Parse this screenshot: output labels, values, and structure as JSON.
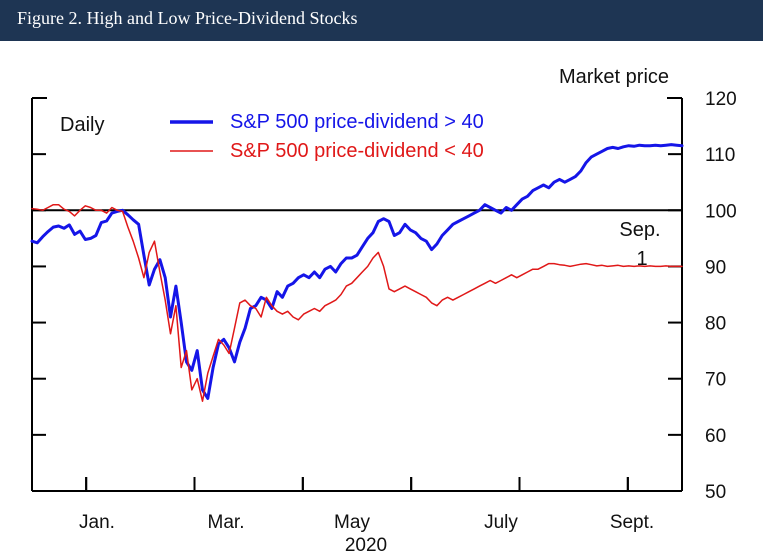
{
  "header": {
    "title": "Figure 2. High and Low Price-Dividend Stocks"
  },
  "chart_data": {
    "type": "line",
    "frequency_label": "Daily",
    "ylabel": "Market price",
    "xlabel": "2020",
    "ylim": [
      50,
      120
    ],
    "yticks": [
      50,
      60,
      70,
      80,
      90,
      100,
      110,
      120
    ],
    "x_tick_labels": [
      "Jan.",
      "Mar.",
      "May",
      "July",
      "Sept."
    ],
    "reference_line": 100,
    "annotation": {
      "line1": "Sep.",
      "line2": "1"
    },
    "grid": false,
    "legend_position": "top-left",
    "colors": {
      "high": "#1515e8",
      "low": "#e01818",
      "axis": "#000000",
      "header": "#1e3553"
    },
    "series": [
      {
        "name": "S&P 500 price-dividend > 40",
        "key": "high",
        "x": [
          0,
          2,
          4,
          6,
          8,
          10,
          12,
          14,
          16,
          18,
          20,
          22,
          24,
          26,
          28,
          30,
          32,
          34,
          36,
          38,
          40,
          42,
          44,
          46,
          48,
          50,
          52,
          54,
          56,
          58,
          60,
          62,
          64,
          66,
          68,
          70,
          72,
          74,
          76,
          78,
          80,
          82,
          84,
          86,
          88,
          90,
          92,
          94,
          96,
          98,
          100,
          102,
          104,
          106,
          108,
          110,
          112,
          114,
          116,
          118,
          120,
          122,
          124,
          126,
          128,
          130,
          132,
          134,
          136,
          138,
          140,
          142,
          144,
          146,
          148,
          150,
          152,
          154,
          156,
          158,
          160,
          162,
          164,
          166,
          168,
          170,
          172,
          174,
          176,
          178,
          180,
          182,
          184,
          186,
          188,
          190,
          192,
          194,
          196,
          198,
          200,
          202,
          204,
          206,
          208,
          210,
          212,
          214,
          216,
          218,
          220,
          222,
          224,
          226,
          228,
          230,
          232,
          234,
          236,
          238,
          240,
          242,
          244
        ],
        "y": [
          94.5,
          94.2,
          95.3,
          96.2,
          97.0,
          97.2,
          96.8,
          97.4,
          95.7,
          96.3,
          94.8,
          95.0,
          95.5,
          97.8,
          98.1,
          99.5,
          99.8,
          100.0,
          99.2,
          98.3,
          97.5,
          92.0,
          86.7,
          89.5,
          91.2,
          88.0,
          81.0,
          86.5,
          80.0,
          73.0,
          71.5,
          75.0,
          68.0,
          66.5,
          72.0,
          76.2,
          77.0,
          75.5,
          73.0,
          76.5,
          79.0,
          82.5,
          83.0,
          84.5,
          84.0,
          82.5,
          85.5,
          84.5,
          86.5,
          87.0,
          88.0,
          88.5,
          88.0,
          89.0,
          88.0,
          89.5,
          90.0,
          89.0,
          90.5,
          91.5,
          91.5,
          92.0,
          93.5,
          95.0,
          96.0,
          98.0,
          98.5,
          98.0,
          95.5,
          96.0,
          97.5,
          96.5,
          96.0,
          95.0,
          94.5,
          93.0,
          94.0,
          95.5,
          96.5,
          97.5,
          98.0,
          98.5,
          99.0,
          99.5,
          100.0,
          101.0,
          100.5,
          100.0,
          99.5,
          100.5,
          100.0,
          101.0,
          102.0,
          102.5,
          103.5,
          104.0,
          104.5,
          104.0,
          105.0,
          105.5,
          105.0,
          105.5,
          106.0,
          107.0,
          108.5,
          109.5,
          110.0,
          110.5,
          111.0,
          111.2,
          111.0,
          111.3,
          111.5,
          111.4,
          111.6,
          111.5,
          111.5,
          111.6,
          111.5,
          111.6,
          111.7,
          111.6,
          111.5
        ]
      },
      {
        "name": "S&P 500 price-dividend < 40",
        "key": "low",
        "x": [
          0,
          2,
          4,
          6,
          8,
          10,
          12,
          14,
          16,
          18,
          20,
          22,
          24,
          26,
          28,
          30,
          32,
          34,
          36,
          38,
          40,
          42,
          44,
          46,
          48,
          50,
          52,
          54,
          56,
          58,
          60,
          62,
          64,
          66,
          68,
          70,
          72,
          74,
          76,
          78,
          80,
          82,
          84,
          86,
          88,
          90,
          92,
          94,
          96,
          98,
          100,
          102,
          104,
          106,
          108,
          110,
          112,
          114,
          116,
          118,
          120,
          122,
          124,
          126,
          128,
          130,
          132,
          134,
          136,
          138,
          140,
          142,
          144,
          146,
          148,
          150,
          152,
          154,
          156,
          158,
          160,
          162,
          164,
          166,
          168,
          170,
          172,
          174,
          176,
          178,
          180,
          182,
          184,
          186,
          188,
          190,
          192,
          194,
          196,
          198,
          200,
          202,
          204,
          206,
          208,
          210,
          212,
          214,
          216,
          218,
          220,
          222,
          224,
          226,
          228,
          230,
          232,
          234,
          236,
          238,
          240,
          242,
          244
        ],
        "y": [
          100.3,
          100.2,
          100.0,
          100.5,
          101.0,
          101.0,
          100.2,
          99.8,
          99.0,
          100.0,
          100.8,
          100.5,
          100.0,
          100.0,
          99.5,
          100.5,
          100.0,
          99.8,
          97.0,
          94.5,
          91.5,
          88.0,
          92.5,
          94.5,
          89.0,
          84.0,
          78.0,
          83.0,
          72.0,
          75.0,
          68.0,
          70.0,
          66.0,
          71.0,
          74.0,
          77.0,
          76.0,
          74.5,
          79.0,
          83.5,
          84.0,
          83.0,
          82.5,
          81.0,
          84.5,
          83.0,
          82.0,
          81.5,
          82.0,
          81.0,
          80.5,
          81.5,
          82.0,
          82.5,
          82.0,
          83.0,
          83.5,
          84.0,
          85.0,
          86.5,
          87.0,
          88.0,
          89.0,
          90.0,
          91.5,
          92.5,
          90.0,
          86.0,
          85.5,
          86.0,
          86.5,
          86.0,
          85.5,
          85.0,
          84.5,
          83.5,
          83.0,
          84.0,
          84.5,
          84.0,
          84.5,
          85.0,
          85.5,
          86.0,
          86.5,
          87.0,
          87.5,
          87.0,
          87.5,
          88.0,
          88.5,
          88.0,
          88.5,
          89.0,
          89.5,
          89.5,
          90.0,
          90.5,
          90.5,
          90.3,
          90.2,
          90.0,
          90.2,
          90.4,
          90.5,
          90.3,
          90.1,
          90.2,
          90.0,
          90.1,
          90.2,
          90.0,
          90.1,
          90.0,
          90.1,
          90.0,
          90.1,
          90.0,
          90.0,
          90.1,
          90.0,
          90.0,
          90.0
        ]
      }
    ]
  }
}
